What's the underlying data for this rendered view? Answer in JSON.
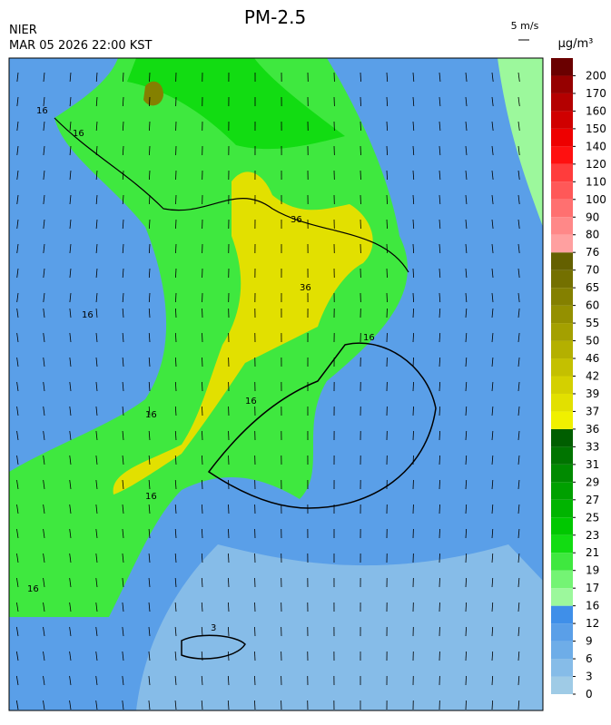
{
  "header": {
    "title": "PM-2.5",
    "source": "NIER",
    "datetime": "MAR 05 2026 22:00 KST",
    "wind_scale": "5 m/s",
    "unit": "μg/m³"
  },
  "colorbar": {
    "ticks": [
      0,
      3,
      6,
      9,
      12,
      16,
      17,
      19,
      21,
      23,
      25,
      27,
      29,
      31,
      33,
      36,
      37,
      39,
      42,
      46,
      50,
      55,
      60,
      65,
      70,
      76,
      80,
      90,
      100,
      110,
      120,
      140,
      150,
      160,
      170,
      200
    ],
    "colors": [
      "#9fcbe6",
      "#86bce8",
      "#6eade8",
      "#5a9fe8",
      "#3f8fe9",
      "#9cf89c",
      "#74f474",
      "#3fe83f",
      "#12dc12",
      "#00c800",
      "#00b400",
      "#00a000",
      "#008a00",
      "#007400",
      "#005e00",
      "#f0f000",
      "#e2e000",
      "#d4d000",
      "#c4c000",
      "#b4b000",
      "#a4a000",
      "#949000",
      "#848000",
      "#747000",
      "#646000",
      "#ffa0a0",
      "#ff8888",
      "#ff7070",
      "#ff5858",
      "#ff3c3c",
      "#ff1010",
      "#ee0000",
      "#d00000",
      "#b40000",
      "#960000",
      "#6a0000"
    ]
  },
  "contour_labels": [
    "16",
    "16",
    "16",
    "16",
    "16",
    "16",
    "16",
    "36",
    "36",
    "16",
    "3"
  ]
}
